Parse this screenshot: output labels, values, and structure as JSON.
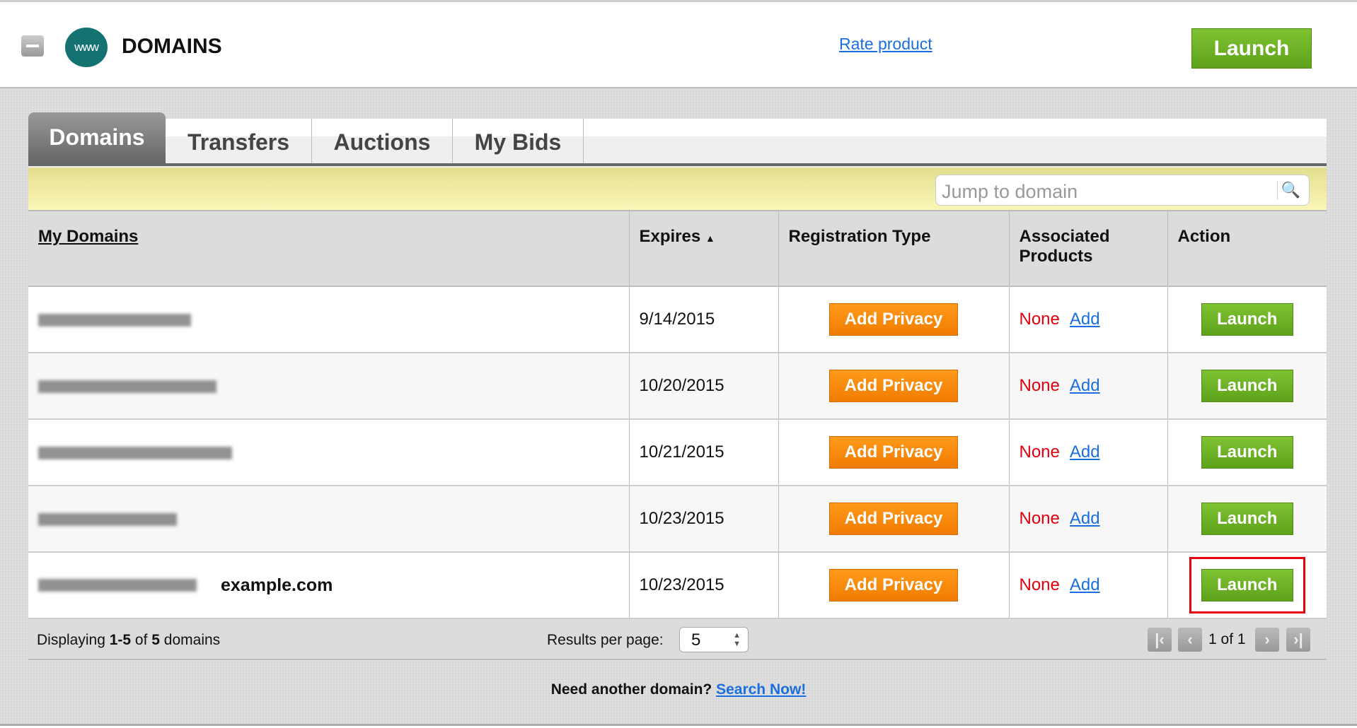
{
  "header": {
    "title": "DOMAINS",
    "logo_text": "www",
    "rate_link": "Rate product",
    "launch": "Launch"
  },
  "tabs": [
    {
      "label": "Domains",
      "active": true
    },
    {
      "label": "Transfers"
    },
    {
      "label": "Auctions"
    },
    {
      "label": "My Bids"
    }
  ],
  "search": {
    "placeholder": "Jump to domain",
    "icon": "search-icon"
  },
  "table": {
    "headers": {
      "domain": "My Domains",
      "expires": "Expires",
      "sort_arrow": "▲",
      "reg": "Registration Type",
      "assoc": "Associated Products",
      "action": "Action"
    },
    "rows": [
      {
        "expires": "9/14/2015",
        "reg": "Add Privacy",
        "none": "None",
        "add": "Add",
        "action": "Launch"
      },
      {
        "expires": "10/20/2015",
        "reg": "Add Privacy",
        "none": "None",
        "add": "Add",
        "action": "Launch"
      },
      {
        "expires": "10/21/2015",
        "reg": "Add Privacy",
        "none": "None",
        "add": "Add",
        "action": "Launch"
      },
      {
        "expires": "10/23/2015",
        "reg": "Add Privacy",
        "none": "None",
        "add": "Add",
        "action": "Launch"
      },
      {
        "expires": "10/23/2015",
        "reg": "Add Privacy",
        "none": "None",
        "add": "Add",
        "action": "Launch",
        "annotation": "example.com",
        "highlighted": true
      }
    ]
  },
  "footer": {
    "displaying_pre": "Displaying ",
    "range": "1-5",
    "of": " of ",
    "total": "5",
    "suffix": " domains",
    "results_label": "Results per page:",
    "results_value": "5",
    "page_text": "1 of 1"
  },
  "bottom": {
    "text": "Need another domain?",
    "link": "Search Now!"
  },
  "colors": {
    "green": "#6cb224",
    "orange": "#f68a0a",
    "teal": "#147370",
    "red": "#e5000f",
    "link": "#1a6fe0"
  }
}
